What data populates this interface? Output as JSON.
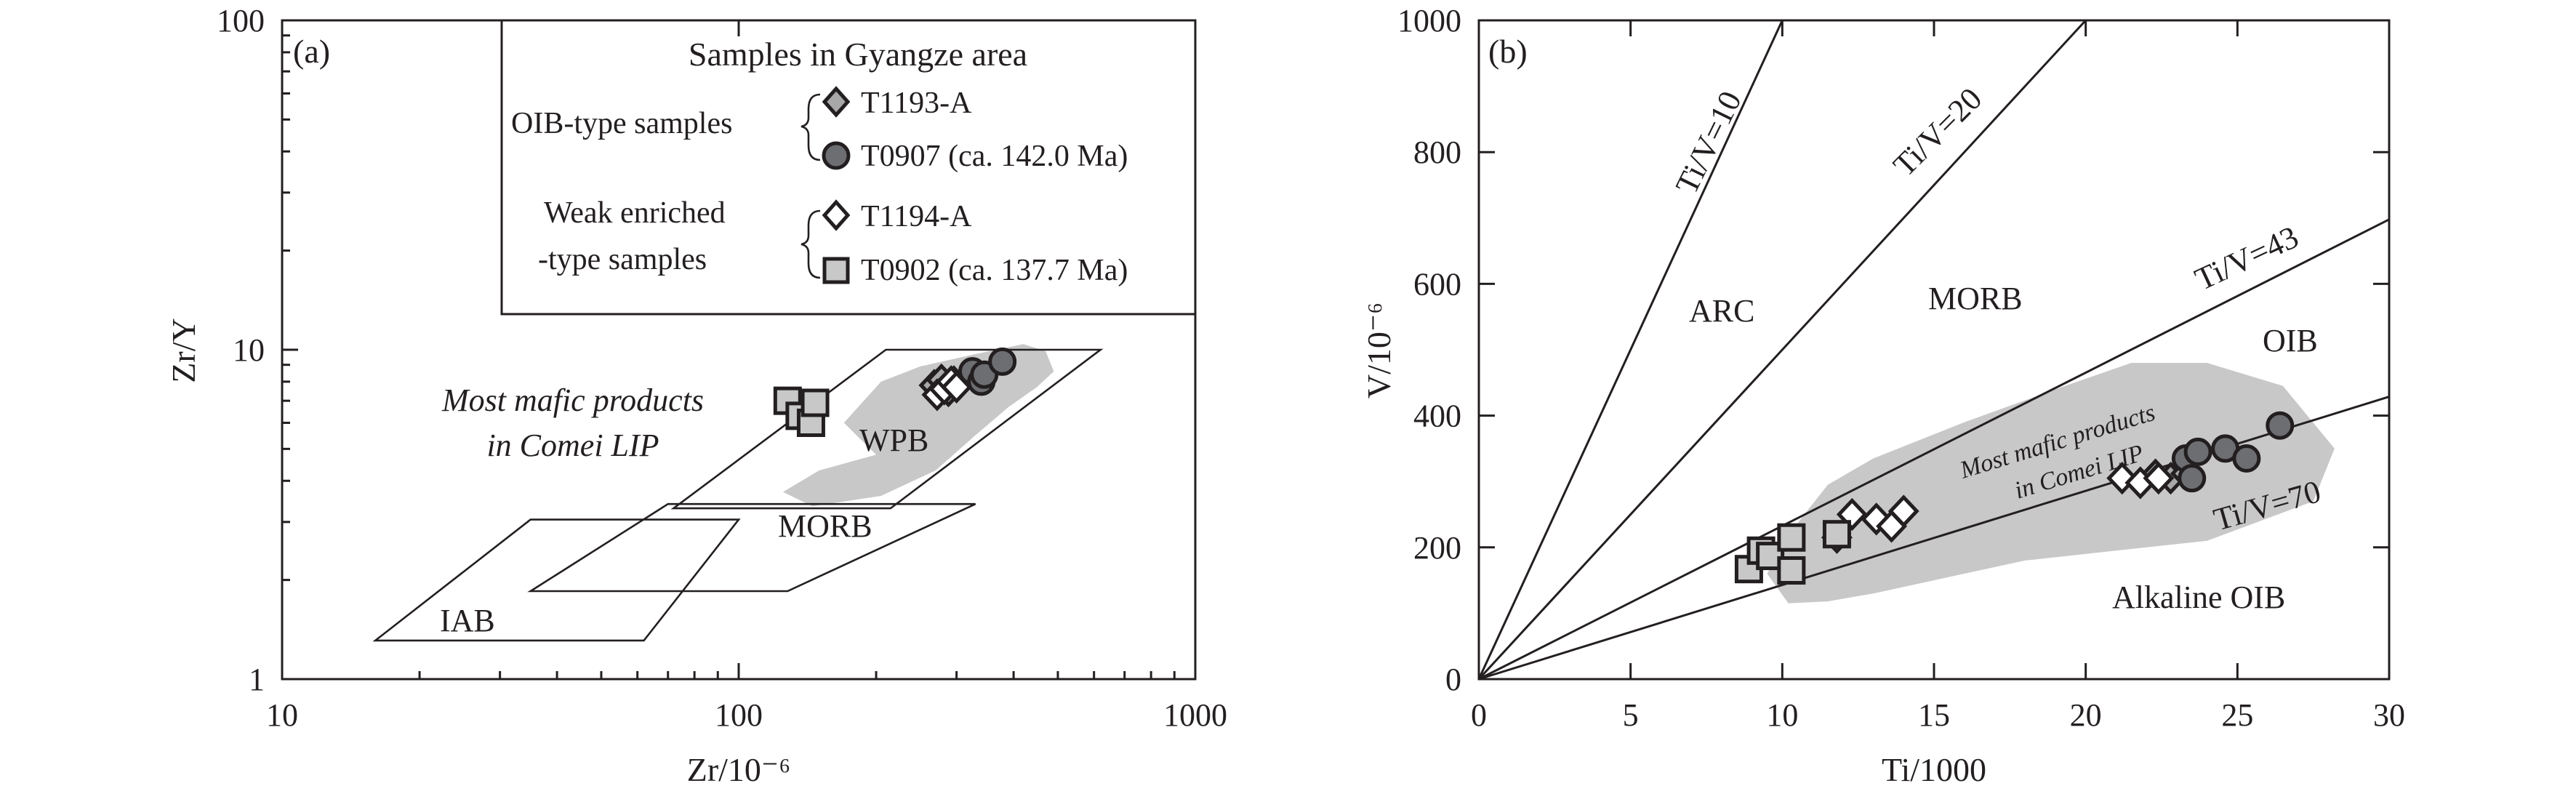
{
  "colors": {
    "ink": "#231f20",
    "field_fill": "#c8c8c8",
    "oib_diamond": "#a8a8a8",
    "oib_circle": "#6d6e71",
    "weak_diamond": "#ffffff",
    "weak_square": "#c8c8c8"
  },
  "chart_data": [
    {
      "type": "scatter",
      "panel_label": "(a)",
      "xlabel": "Zr/10⁻⁶",
      "ylabel": "Zr/Y",
      "xscale": "log",
      "yscale": "log",
      "xlim": [
        10,
        1000
      ],
      "ylim": [
        1,
        100
      ],
      "xticks": [
        "10",
        "100",
        "1000"
      ],
      "yticks": [
        "1",
        "10",
        "100"
      ],
      "grid": false,
      "legend": {
        "placement": "top-right",
        "title": "Samples in Gyangze area",
        "groups": [
          {
            "label": "OIB-type samples",
            "entries": [
              "T1193-A",
              "T0907 (ca. 142.0 Ma)"
            ]
          },
          {
            "label_lines": [
              "Weak enriched",
              "-type  samples"
            ],
            "entries": [
              "T1194-A",
              "T0902 (ca. 137.7 Ma)"
            ]
          }
        ]
      },
      "shaded_field": {
        "label_lines": [
          "Most mafic products",
          "in Comei LIP"
        ],
        "polygon": [
          [
            200,
            4.8
          ],
          [
            170,
            6.0
          ],
          [
            205,
            8.0
          ],
          [
            250,
            8.9
          ],
          [
            330,
            9.7
          ],
          [
            420,
            10.4
          ],
          [
            470,
            9.9
          ],
          [
            490,
            8.6
          ],
          [
            450,
            7.7
          ],
          [
            390,
            6.7
          ],
          [
            330,
            5.5
          ],
          [
            270,
            4.3
          ],
          [
            205,
            3.6
          ],
          [
            145,
            3.35
          ],
          [
            125,
            3.7
          ],
          [
            150,
            4.3
          ]
        ]
      },
      "fields": [
        {
          "name": "WPB",
          "polygon": [
            [
              210,
              10
            ],
            [
              620,
              10
            ],
            [
              215,
              3.3
            ],
            [
              72,
              3.3
            ]
          ]
        },
        {
          "name": "MORB",
          "polygon": [
            [
              70,
              3.4
            ],
            [
              330,
              3.4
            ],
            [
              128,
              1.85
            ],
            [
              35,
              1.85
            ]
          ]
        },
        {
          "name": "IAB",
          "polygon": [
            [
              35,
              3.05
            ],
            [
              100,
              3.05
            ],
            [
              62,
              1.31
            ],
            [
              16,
              1.31
            ]
          ]
        }
      ],
      "series": [
        {
          "name": "T1193-A",
          "marker": "diamond",
          "color": "#a8a8a8",
          "points": [
            {
              "x": 268,
              "y": 7.8
            },
            {
              "x": 278,
              "y": 8.1
            },
            {
              "x": 288,
              "y": 7.5
            },
            {
              "x": 296,
              "y": 8.0
            }
          ]
        },
        {
          "name": "T0907 (ca. 142.0 Ma)",
          "marker": "circle",
          "color": "#6d6e71",
          "points": [
            {
              "x": 325,
              "y": 8.6
            },
            {
              "x": 340,
              "y": 8.0
            },
            {
              "x": 345,
              "y": 8.4
            },
            {
              "x": 378,
              "y": 9.2
            }
          ]
        },
        {
          "name": "T1194-A",
          "marker": "diamond",
          "color": "#ffffff",
          "points": [
            {
              "x": 272,
              "y": 7.3
            },
            {
              "x": 282,
              "y": 7.6
            },
            {
              "x": 292,
              "y": 8.0
            },
            {
              "x": 300,
              "y": 7.7
            }
          ]
        },
        {
          "name": "T0902 (ca. 137.7 Ma)",
          "marker": "square",
          "color": "#c8c8c8",
          "points": [
            {
              "x": 128,
              "y": 7.0
            },
            {
              "x": 136,
              "y": 6.3
            },
            {
              "x": 144,
              "y": 6.0
            },
            {
              "x": 147,
              "y": 6.9
            }
          ]
        }
      ]
    },
    {
      "type": "scatter",
      "panel_label": "(b)",
      "xlabel": "Ti/1000",
      "ylabel": "V/10⁻⁶",
      "xlim": [
        0,
        30
      ],
      "ylim": [
        0,
        1000
      ],
      "xticks": [
        "0",
        "5",
        "10",
        "15",
        "20",
        "25",
        "30"
      ],
      "yticks": [
        "0",
        "200",
        "400",
        "600",
        "800",
        "1000"
      ],
      "grid": false,
      "shaded_field": {
        "label_lines": [
          "Most mafic products",
          "in Comei LIP"
        ],
        "polygon": [
          [
            10.2,
            115
          ],
          [
            9.5,
            160
          ],
          [
            10.3,
            225
          ],
          [
            11.5,
            295
          ],
          [
            13.0,
            335
          ],
          [
            16.0,
            390
          ],
          [
            19.0,
            440
          ],
          [
            21.5,
            480
          ],
          [
            24.0,
            480
          ],
          [
            26.5,
            445
          ],
          [
            28.2,
            350
          ],
          [
            27.5,
            270
          ],
          [
            24.0,
            210
          ],
          [
            18.0,
            180
          ],
          [
            13.0,
            130
          ],
          [
            11.5,
            118
          ]
        ]
      },
      "reference_lines": [
        {
          "name": "Ti/V=10",
          "slope": 100
        },
        {
          "name": "Ti/V=20",
          "slope": 50
        },
        {
          "name": "Ti/V=43",
          "slope": 23.26
        },
        {
          "name": "Ti/V=70",
          "slope": 14.29
        }
      ],
      "field_labels": [
        "ARC",
        "MORB",
        "OIB",
        "Alkaline OIB"
      ],
      "series": [
        {
          "name": "T1193-A",
          "marker": "diamond",
          "color": "#a8a8a8",
          "points": [
            {
              "x": 22.3,
              "y": 310
            },
            {
              "x": 22.8,
              "y": 305
            },
            {
              "x": 23.3,
              "y": 312
            }
          ]
        },
        {
          "name": "T0907 (ca. 142.0 Ma)",
          "marker": "circle",
          "color": "#6d6e71",
          "points": [
            {
              "x": 23.3,
              "y": 335
            },
            {
              "x": 23.5,
              "y": 305
            },
            {
              "x": 23.7,
              "y": 345
            },
            {
              "x": 24.6,
              "y": 350
            },
            {
              "x": 25.3,
              "y": 335
            },
            {
              "x": 26.4,
              "y": 385
            }
          ]
        },
        {
          "name": "T1194-A",
          "marker": "diamond",
          "color": "#ffffff",
          "points": [
            {
              "x": 11.8,
              "y": 215
            },
            {
              "x": 12.3,
              "y": 250
            },
            {
              "x": 13.1,
              "y": 243
            },
            {
              "x": 13.6,
              "y": 232
            },
            {
              "x": 14.0,
              "y": 255
            },
            {
              "x": 21.2,
              "y": 305
            },
            {
              "x": 21.8,
              "y": 298
            },
            {
              "x": 22.4,
              "y": 305
            }
          ]
        },
        {
          "name": "T0902 (ca. 137.7 Ma)",
          "marker": "square",
          "color": "#c8c8c8",
          "points": [
            {
              "x": 8.9,
              "y": 167
            },
            {
              "x": 9.3,
              "y": 195
            },
            {
              "x": 9.6,
              "y": 187
            },
            {
              "x": 10.3,
              "y": 215
            },
            {
              "x": 10.3,
              "y": 165
            },
            {
              "x": 11.8,
              "y": 220
            }
          ]
        }
      ]
    }
  ]
}
